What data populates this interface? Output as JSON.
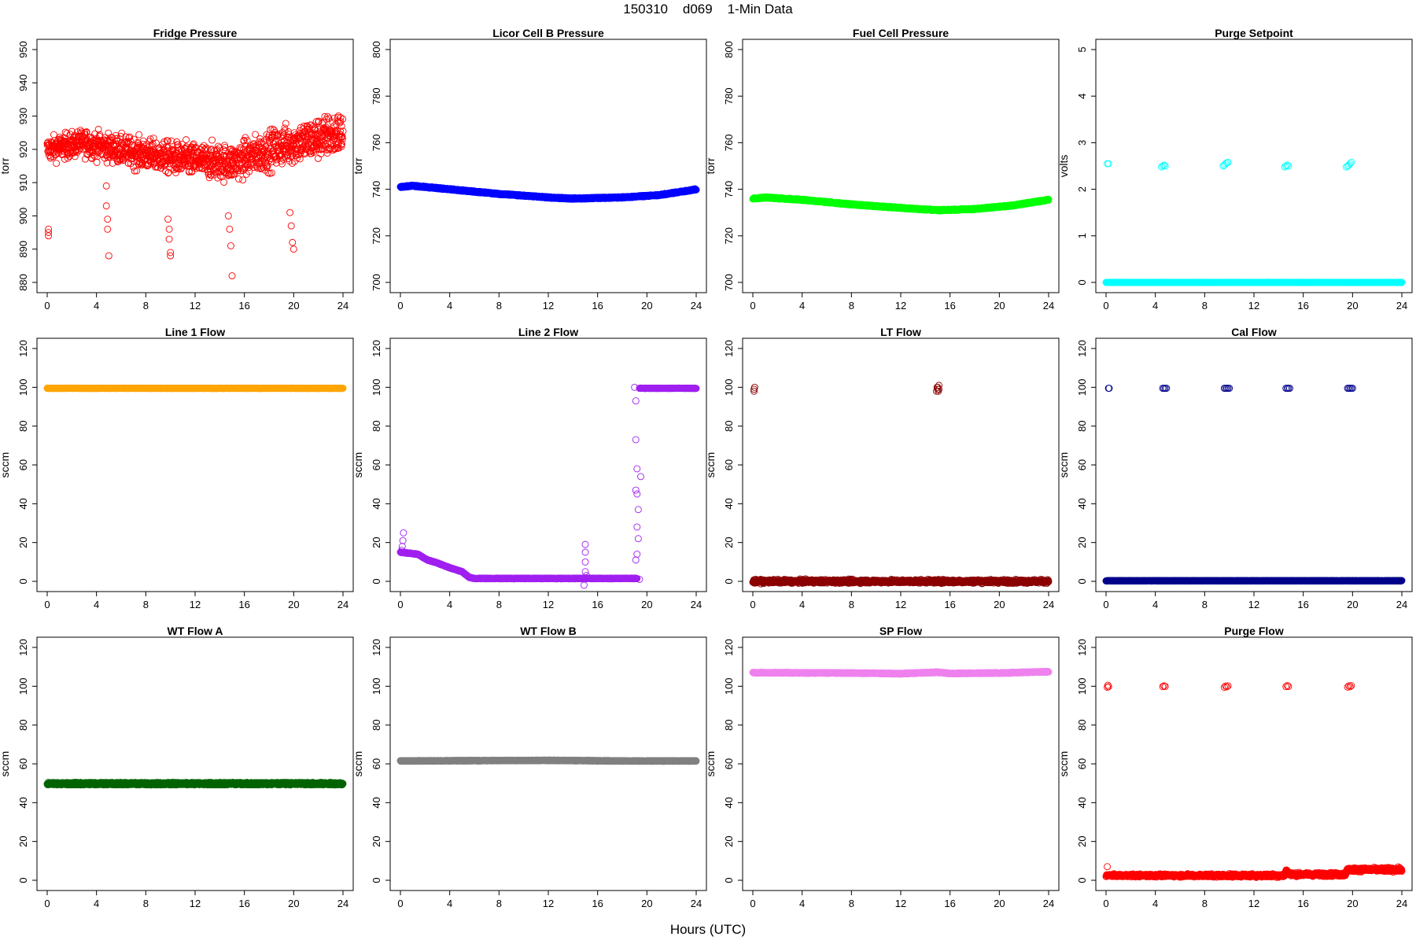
{
  "figure": {
    "title": "150310    d069    1-Min Data",
    "xlabel": "Hours (UTC)"
  },
  "chart_data": [
    {
      "type": "scatter",
      "title": "Fridge Pressure",
      "ylabel": "torr",
      "color": "#ff0000",
      "xlim": [
        0,
        24
      ],
      "ylim": [
        880,
        950
      ],
      "xticks": [
        0,
        4,
        8,
        12,
        16,
        20,
        24
      ],
      "yticks": [
        880,
        890,
        900,
        910,
        920,
        930,
        940,
        950
      ],
      "series": [
        {
          "kind": "noise",
          "x": [
            0,
            24
          ],
          "base": [
            [
              0,
              920
            ],
            [
              3,
              922
            ],
            [
              7,
              919
            ],
            [
              11,
              917
            ],
            [
              15,
              916
            ],
            [
              19,
              921
            ],
            [
              24,
              925
            ]
          ],
          "spread": 12,
          "spreadEnd": 22,
          "count": 1300
        },
        {
          "kind": "points",
          "x": [
            0.1,
            0.1,
            0.1,
            4.8,
            4.8,
            4.9,
            4.9,
            5.0,
            9.8,
            9.9,
            9.9,
            10.0,
            10.0,
            14.7,
            14.8,
            14.9,
            15.0,
            19.7,
            19.8,
            19.9,
            20.0
          ],
          "y": [
            894,
            895,
            896,
            909,
            903,
            899,
            896,
            888,
            899,
            896,
            893,
            889,
            888,
            900,
            896,
            891,
            882,
            901,
            897,
            892,
            890
          ]
        }
      ]
    },
    {
      "type": "scatter",
      "title": "Licor Cell B Pressure",
      "ylabel": "torr",
      "color": "#0000ff",
      "xlim": [
        0,
        24
      ],
      "ylim": [
        700,
        800
      ],
      "xticks": [
        0,
        4,
        8,
        12,
        16,
        20,
        24
      ],
      "yticks": [
        700,
        720,
        740,
        760,
        780,
        800
      ],
      "series": [
        {
          "kind": "line",
          "base": [
            [
              0,
              741
            ],
            [
              1,
              741.5
            ],
            [
              4,
              740
            ],
            [
              8,
              738
            ],
            [
              12,
              736.5
            ],
            [
              14,
              736
            ],
            [
              18,
              736.5
            ],
            [
              21,
              737.5
            ],
            [
              24,
              740
            ]
          ],
          "spread": 0.6,
          "count": 1400
        }
      ]
    },
    {
      "type": "scatter",
      "title": "Fuel Cell Pressure",
      "ylabel": "torr",
      "color": "#00ff00",
      "xlim": [
        0,
        24
      ],
      "ylim": [
        700,
        800
      ],
      "xticks": [
        0,
        4,
        8,
        12,
        16,
        20,
        24
      ],
      "yticks": [
        700,
        720,
        740,
        760,
        780,
        800
      ],
      "series": [
        {
          "kind": "line",
          "base": [
            [
              0,
              736
            ],
            [
              1,
              736.5
            ],
            [
              4,
              735.5
            ],
            [
              8,
              733.5
            ],
            [
              12,
              732
            ],
            [
              15,
              731
            ],
            [
              18,
              731.5
            ],
            [
              21,
              733
            ],
            [
              24,
              735.5
            ]
          ],
          "spread": 0.6,
          "count": 1400
        }
      ]
    },
    {
      "type": "scatter",
      "title": "Purge Setpoint",
      "ylabel": "volts",
      "color": "#00ffff",
      "xlim": [
        0,
        24
      ],
      "ylim": [
        0,
        5
      ],
      "xticks": [
        0,
        4,
        8,
        12,
        16,
        20,
        24
      ],
      "yticks": [
        0,
        1,
        2,
        3,
        4,
        5
      ],
      "series": [
        {
          "kind": "line",
          "base": [
            [
              0,
              0
            ],
            [
              24,
              0
            ]
          ],
          "spread": 0.005,
          "count": 1400
        },
        {
          "kind": "points",
          "x": [
            0.1,
            0.2,
            4.5,
            4.6,
            4.7,
            4.8,
            9.5,
            9.6,
            9.7,
            9.8,
            9.9,
            14.5,
            14.6,
            14.7,
            14.8,
            19.5,
            19.6,
            19.7,
            19.8,
            19.9
          ],
          "y": [
            2.55,
            2.55,
            2.48,
            2.5,
            2.52,
            2.5,
            2.5,
            2.52,
            2.55,
            2.57,
            2.58,
            2.48,
            2.5,
            2.52,
            2.5,
            2.48,
            2.5,
            2.52,
            2.55,
            2.58
          ]
        }
      ]
    },
    {
      "type": "scatter",
      "title": "Line 1 Flow",
      "ylabel": "sccm",
      "color": "#ffa500",
      "xlim": [
        0,
        24
      ],
      "ylim": [
        0,
        120
      ],
      "xticks": [
        0,
        4,
        8,
        12,
        16,
        20,
        24
      ],
      "yticks": [
        0,
        20,
        40,
        60,
        80,
        100,
        120
      ],
      "series": [
        {
          "kind": "line",
          "base": [
            [
              0,
              99.5
            ],
            [
              24,
              99.5
            ]
          ],
          "spread": 0.2,
          "count": 1400
        }
      ]
    },
    {
      "type": "scatter",
      "title": "Line 2 Flow",
      "ylabel": "sccm",
      "color": "#a020f0",
      "xlim": [
        0,
        24
      ],
      "ylim": [
        0,
        120
      ],
      "xticks": [
        0,
        4,
        8,
        12,
        16,
        20,
        24
      ],
      "yticks": [
        0,
        20,
        40,
        60,
        80,
        100,
        120
      ],
      "series": [
        {
          "kind": "line",
          "base": [
            [
              0,
              15
            ],
            [
              1.4,
              14
            ],
            [
              2.2,
              11
            ],
            [
              3,
              9.5
            ],
            [
              4,
              7
            ],
            [
              5,
              5
            ],
            [
              5.6,
              2
            ],
            [
              6,
              1.5
            ],
            [
              19.2,
              1.5
            ]
          ],
          "spread": 0.4,
          "count": 1000
        },
        {
          "kind": "line",
          "base": [
            [
              19.4,
              99.5
            ],
            [
              24,
              99.5
            ]
          ],
          "spread": 0.2,
          "count": 300
        },
        {
          "kind": "points",
          "x": [
            0.1,
            0.15,
            0.2,
            0.25,
            14.9,
            15.0,
            15.0,
            15.0,
            15.0,
            15.1,
            19.0,
            19.1,
            19.1,
            19.2,
            19.2,
            19.3,
            19.3,
            19.1,
            19.2,
            19.4,
            19.5,
            19.2,
            19.1
          ],
          "y": [
            16,
            18,
            21,
            25,
            -2,
            19,
            15,
            10,
            5,
            3,
            100,
            47,
            73,
            58,
            45,
            37,
            22,
            93,
            28,
            1,
            54,
            14,
            11
          ]
        }
      ]
    },
    {
      "type": "scatter",
      "title": "LT Flow",
      "ylabel": "sccm",
      "color": "#8b0000",
      "xlim": [
        0,
        24
      ],
      "ylim": [
        0,
        120
      ],
      "xticks": [
        0,
        4,
        8,
        12,
        16,
        20,
        24
      ],
      "yticks": [
        0,
        20,
        40,
        60,
        80,
        100,
        120
      ],
      "series": [
        {
          "kind": "noise",
          "base": [
            [
              0,
              0
            ],
            [
              24,
              0
            ]
          ],
          "spread": 3,
          "spreadEnd": 3,
          "count": 1400
        },
        {
          "kind": "points",
          "x": [
            0.1,
            0.1,
            0.15,
            14.9,
            15.0,
            15.0,
            15.1,
            15.1,
            14.95,
            15.05
          ],
          "y": [
            98,
            99,
            100,
            98,
            99,
            100,
            99,
            101,
            100,
            98
          ]
        }
      ]
    },
    {
      "type": "scatter",
      "title": "Cal Flow",
      "ylabel": "sccm",
      "color": "#00008b",
      "xlim": [
        0,
        24
      ],
      "ylim": [
        0,
        120
      ],
      "xticks": [
        0,
        4,
        8,
        12,
        16,
        20,
        24
      ],
      "yticks": [
        0,
        20,
        40,
        60,
        80,
        100,
        120
      ],
      "series": [
        {
          "kind": "line",
          "base": [
            [
              0,
              0.3
            ],
            [
              24,
              0.3
            ]
          ],
          "spread": 0.25,
          "count": 1400
        },
        {
          "kind": "points",
          "x": [
            0.2,
            0.25,
            4.6,
            4.7,
            4.8,
            4.9,
            9.6,
            9.7,
            9.8,
            9.9,
            10.0,
            14.6,
            14.7,
            14.8,
            14.9,
            19.6,
            19.7,
            19.8,
            19.9,
            20.0
          ],
          "y": [
            99.5,
            99.5,
            99.5,
            99.5,
            99.5,
            99.5,
            99.5,
            99.5,
            99.5,
            99.5,
            99.5,
            99.5,
            99.5,
            99.5,
            99.5,
            99.5,
            99.5,
            99.5,
            99.5,
            99.5
          ]
        }
      ]
    },
    {
      "type": "scatter",
      "title": "WT Flow A",
      "ylabel": "sccm",
      "color": "#006400",
      "xlim": [
        0,
        24
      ],
      "ylim": [
        0,
        120
      ],
      "xticks": [
        0,
        4,
        8,
        12,
        16,
        20,
        24
      ],
      "yticks": [
        0,
        20,
        40,
        60,
        80,
        100,
        120
      ],
      "series": [
        {
          "kind": "line",
          "base": [
            [
              0,
              49.8
            ],
            [
              24,
              49.8
            ]
          ],
          "spread": 1.3,
          "count": 1400
        }
      ]
    },
    {
      "type": "scatter",
      "title": "WT Flow B",
      "ylabel": "sccm",
      "color": "#808080",
      "xlim": [
        0,
        24
      ],
      "ylim": [
        0,
        120
      ],
      "xticks": [
        0,
        4,
        8,
        12,
        16,
        20,
        24
      ],
      "yticks": [
        0,
        20,
        40,
        60,
        80,
        100,
        120
      ],
      "series": [
        {
          "kind": "line",
          "base": [
            [
              0,
              61.5
            ],
            [
              12,
              61.8
            ],
            [
              18,
              61.5
            ],
            [
              24,
              61.5
            ]
          ],
          "spread": 0.4,
          "count": 1400
        }
      ]
    },
    {
      "type": "scatter",
      "title": "SP Flow",
      "ylabel": "sccm",
      "color": "#ee82ee",
      "xlim": [
        0,
        24
      ],
      "ylim": [
        0,
        120
      ],
      "xticks": [
        0,
        4,
        8,
        12,
        16,
        20,
        24
      ],
      "yticks": [
        0,
        20,
        40,
        60,
        80,
        100,
        120
      ],
      "series": [
        {
          "kind": "line",
          "base": [
            [
              0,
              107
            ],
            [
              8,
              106.8
            ],
            [
              12,
              106.5
            ],
            [
              15,
              107.2
            ],
            [
              16,
              106.6
            ],
            [
              20,
              106.8
            ],
            [
              24,
              107.5
            ]
          ],
          "spread": 0.5,
          "count": 1400
        }
      ]
    },
    {
      "type": "scatter",
      "title": "Purge Flow",
      "ylabel": "sccm",
      "color": "#ff0000",
      "xlim": [
        0,
        24
      ],
      "ylim": [
        0,
        120
      ],
      "xticks": [
        0,
        4,
        8,
        12,
        16,
        20,
        24
      ],
      "yticks": [
        0,
        20,
        40,
        60,
        80,
        100,
        120
      ],
      "series": [
        {
          "kind": "noise",
          "base": [
            [
              0,
              2.5
            ],
            [
              14.5,
              2.5
            ],
            [
              14.6,
              5
            ],
            [
              15,
              3
            ],
            [
              19.4,
              3
            ],
            [
              19.6,
              5.5
            ],
            [
              24,
              5.5
            ]
          ],
          "spread": 2.2,
          "spreadEnd": 3.5,
          "count": 1400
        },
        {
          "kind": "points",
          "x": [
            0.1,
            0.15,
            0.2,
            0.1,
            4.6,
            4.7,
            4.8,
            9.6,
            9.7,
            9.8,
            9.9,
            14.6,
            14.7,
            14.8,
            19.6,
            19.7,
            19.8,
            19.9
          ],
          "y": [
            99.5,
            100.5,
            99.8,
            7,
            99.8,
            100.2,
            99.9,
            99.5,
            100.1,
            99.7,
            100.2,
            99.8,
            100.3,
            99.9,
            99.6,
            100.2,
            99.8,
            100.3
          ]
        }
      ]
    }
  ]
}
